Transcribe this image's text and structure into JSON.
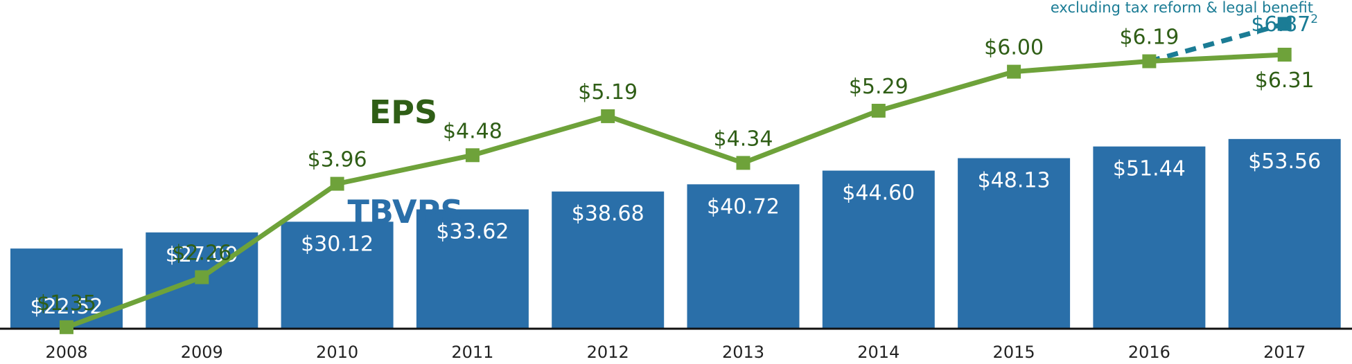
{
  "chart_data": {
    "type": "bar",
    "categories": [
      "2008",
      "2009",
      "2010",
      "2011",
      "2012",
      "2013",
      "2014",
      "2015",
      "2016",
      "2017"
    ],
    "series": [
      {
        "name": "TBVPS",
        "type": "bar",
        "color": "#2a6fa9",
        "values": [
          22.52,
          27.09,
          30.12,
          33.62,
          38.68,
          40.72,
          44.6,
          48.13,
          51.44,
          53.56
        ],
        "labels": [
          "$22.52",
          "$27.09",
          "$30.12",
          "$33.62",
          "$38.68",
          "$40.72",
          "$44.60",
          "$48.13",
          "$51.44",
          "$53.56"
        ]
      },
      {
        "name": "EPS",
        "type": "line",
        "color": "#6ea23a",
        "values": [
          1.35,
          2.26,
          3.96,
          4.48,
          5.19,
          4.34,
          5.29,
          6.0,
          6.19,
          6.31
        ],
        "labels": [
          "$1.35",
          "$2.26",
          "$3.96",
          "$4.48",
          "$5.19",
          "$4.34",
          "$5.29",
          "$6.00",
          "$6.19",
          "$6.31"
        ]
      }
    ],
    "alternate_point": {
      "category": "2017",
      "value": 6.87,
      "label": "$6.87",
      "superscript": "2",
      "note": "excluding tax reform & legal benefit",
      "color": "#1b7c95",
      "from_category": "2016",
      "style": "dashed"
    },
    "name_colors": {
      "TBVPS": "#2a6fa9",
      "EPS": "#2f5e16"
    },
    "axis_color": "#111111",
    "legend": "inline labels",
    "grid": false
  }
}
